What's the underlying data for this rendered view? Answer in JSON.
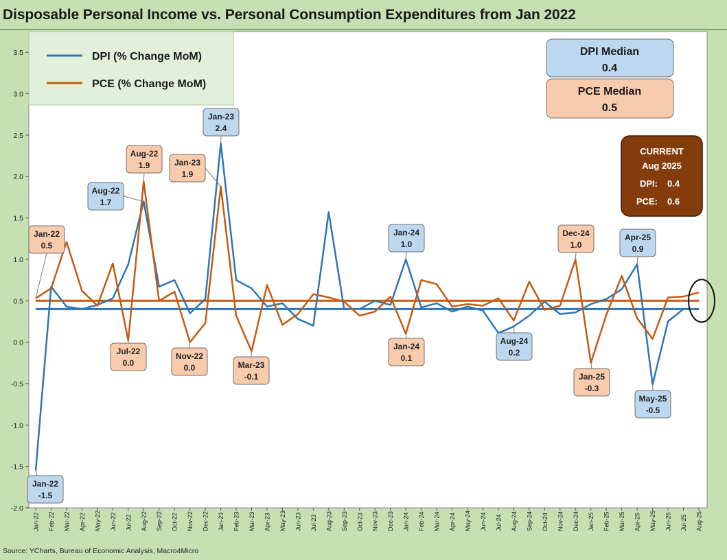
{
  "title": "Disposable Personal Income vs. Personal Consumption Expenditures from Jan 2022",
  "source": "Source: YCharts, Bureau of Economic Analysis, Macro4Micro",
  "colors": {
    "dpi": "#2e75b6",
    "pce": "#c55a11",
    "frame": "#c6e0b4",
    "plot": "#ffffff",
    "dpi_box": "#bdd7ee",
    "pce_box": "#f8cbad",
    "current_box": "#843c0c"
  },
  "legend": {
    "dpi": "DPI (% Change MoM)",
    "pce": "PCE (% Change MoM)"
  },
  "median_boxes": {
    "dpi": {
      "label": "DPI Median",
      "value": "0.4"
    },
    "pce": {
      "label": "PCE Median",
      "value": "0.5"
    }
  },
  "current_box": {
    "title": "CURRENT",
    "period": "Aug 2025",
    "dpi_label": "DPI:",
    "dpi_value": "0.4",
    "pce_label": "PCE:",
    "pce_value": "0.6"
  },
  "chart_data": {
    "type": "line",
    "ylim": [
      -2.0,
      3.75
    ],
    "yticks": [
      "3.5",
      "3.0",
      "2.5",
      "2.0",
      "1.5",
      "1.0",
      "0.5",
      "0.0",
      "-0.5",
      "-1.0",
      "-1.5",
      "-2.0"
    ],
    "x": [
      "Jan-22",
      "Feb-22",
      "Mar-22",
      "Apr-22",
      "May-22",
      "Jun-22",
      "Jul-22",
      "Aug-22",
      "Sep-22",
      "Oct-22",
      "Nov-22",
      "Dec-22",
      "Jan-23",
      "Feb-23",
      "Mar-23",
      "Apr-23",
      "May-23",
      "Jun-23",
      "Jul-23",
      "Aug-23",
      "Sep-23",
      "Oct-23",
      "Nov-23",
      "Dec-23",
      "Jan-24",
      "Feb-24",
      "Mar-24",
      "Apr-24",
      "May-24",
      "Jun-24",
      "Jul-24",
      "Aug-24",
      "Sep-24",
      "Oct-24",
      "Nov-24",
      "Dec-24",
      "Jan-25",
      "Feb-25",
      "Mar-25",
      "Apr-25",
      "May-25",
      "Jun-25",
      "Jul-25",
      "Aug-25"
    ],
    "series": [
      {
        "name": "DPI (% Change MoM)",
        "values": [
          -1.55,
          0.67,
          0.43,
          0.4,
          0.45,
          0.53,
          0.94,
          1.7,
          0.67,
          0.75,
          0.35,
          0.52,
          2.4,
          0.75,
          0.65,
          0.43,
          0.47,
          0.28,
          0.2,
          1.57,
          0.4,
          0.4,
          0.5,
          0.45,
          1.0,
          0.42,
          0.47,
          0.37,
          0.43,
          0.38,
          0.11,
          0.19,
          0.32,
          0.49,
          0.34,
          0.36,
          0.46,
          0.52,
          0.64,
          0.94,
          -0.51,
          0.25,
          0.4,
          0.4
        ]
      },
      {
        "name": "PCE (% Change MoM)",
        "values": [
          0.53,
          0.65,
          1.21,
          0.62,
          0.44,
          0.95,
          0.02,
          1.94,
          0.5,
          0.61,
          0.0,
          0.23,
          1.88,
          0.32,
          -0.11,
          0.69,
          0.21,
          0.34,
          0.58,
          0.54,
          0.49,
          0.32,
          0.37,
          0.55,
          0.1,
          0.75,
          0.7,
          0.43,
          0.46,
          0.44,
          0.53,
          0.26,
          0.73,
          0.39,
          0.44,
          1.0,
          -0.25,
          0.33,
          0.8,
          0.29,
          0.04,
          0.54,
          0.55,
          0.6
        ]
      }
    ],
    "medians": {
      "dpi": 0.4,
      "pce": 0.5
    },
    "annotations": [
      {
        "series": "dpi",
        "month": "Jan-22",
        "value": "-1.5"
      },
      {
        "series": "pce",
        "month": "Jan-22",
        "value": "0.5"
      },
      {
        "series": "dpi",
        "month": "Aug-22",
        "value": "1.7"
      },
      {
        "series": "pce",
        "month": "Aug-22",
        "value": "1.9"
      },
      {
        "series": "pce",
        "month": "Jul-22",
        "value": "0.0"
      },
      {
        "series": "pce",
        "month": "Nov-22",
        "value": "0.0"
      },
      {
        "series": "dpi",
        "month": "Jan-23",
        "value": "2.4"
      },
      {
        "series": "pce",
        "month": "Jan-23",
        "value": "1.9"
      },
      {
        "series": "pce",
        "month": "Mar-23",
        "value": "-0.1"
      },
      {
        "series": "dpi",
        "month": "Jan-24",
        "value": "1.0"
      },
      {
        "series": "pce",
        "month": "Jan-24",
        "value": "0.1"
      },
      {
        "series": "dpi",
        "month": "Aug-24",
        "value": "0.2"
      },
      {
        "series": "pce",
        "month": "Dec-24",
        "value": "1.0"
      },
      {
        "series": "pce",
        "month": "Jan-25",
        "value": "-0.3"
      },
      {
        "series": "dpi",
        "month": "Apr-25",
        "value": "0.9"
      },
      {
        "series": "dpi",
        "month": "May-25",
        "value": "-0.5"
      }
    ],
    "grid": false,
    "legend_position": "top-left"
  }
}
